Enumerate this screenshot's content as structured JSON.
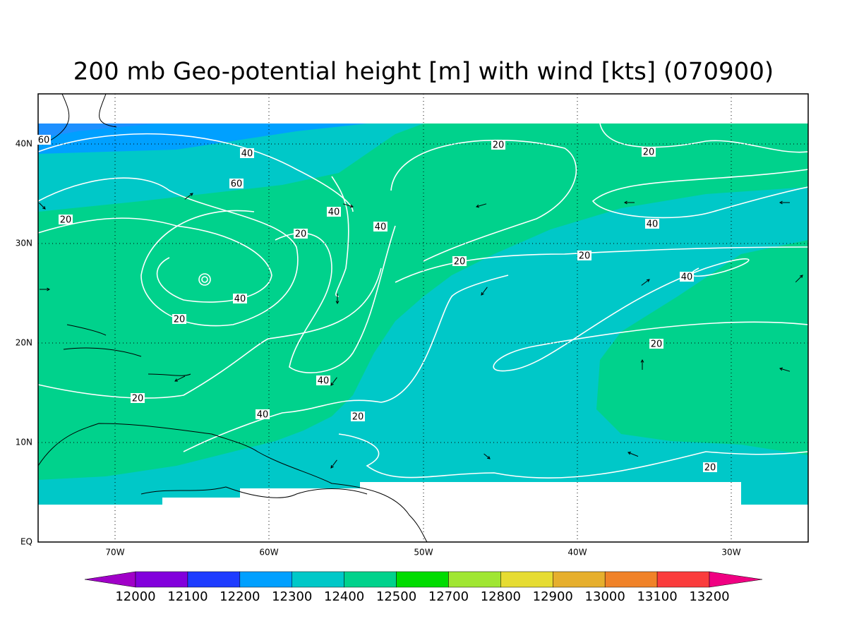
{
  "title": "200 mb Geo-potential height [m] with wind [kts] (070900)",
  "lat_labels": [
    "EQ",
    "10N",
    "20N",
    "30N",
    "40N"
  ],
  "lon_labels": [
    "70W",
    "60W",
    "50W",
    "40W",
    "30W"
  ],
  "contour_labels": [
    60,
    40,
    60,
    40,
    20,
    40,
    20,
    40,
    20,
    20,
    20,
    40,
    20,
    20,
    40,
    20,
    20,
    40,
    40,
    20,
    20
  ],
  "colorbar": {
    "labels": [
      12000,
      12100,
      12200,
      12300,
      12400,
      12500,
      12700,
      12800,
      12900,
      13000,
      13100,
      13200
    ],
    "colors": [
      "#a000c8",
      "#8200dc",
      "#1e3cff",
      "#00a0ff",
      "#00c8c8",
      "#00d28c",
      "#00dc00",
      "#a0e632",
      "#e6dc32",
      "#e6af2d",
      "#f08228",
      "#fa3c3c",
      "#f00082"
    ]
  }
}
